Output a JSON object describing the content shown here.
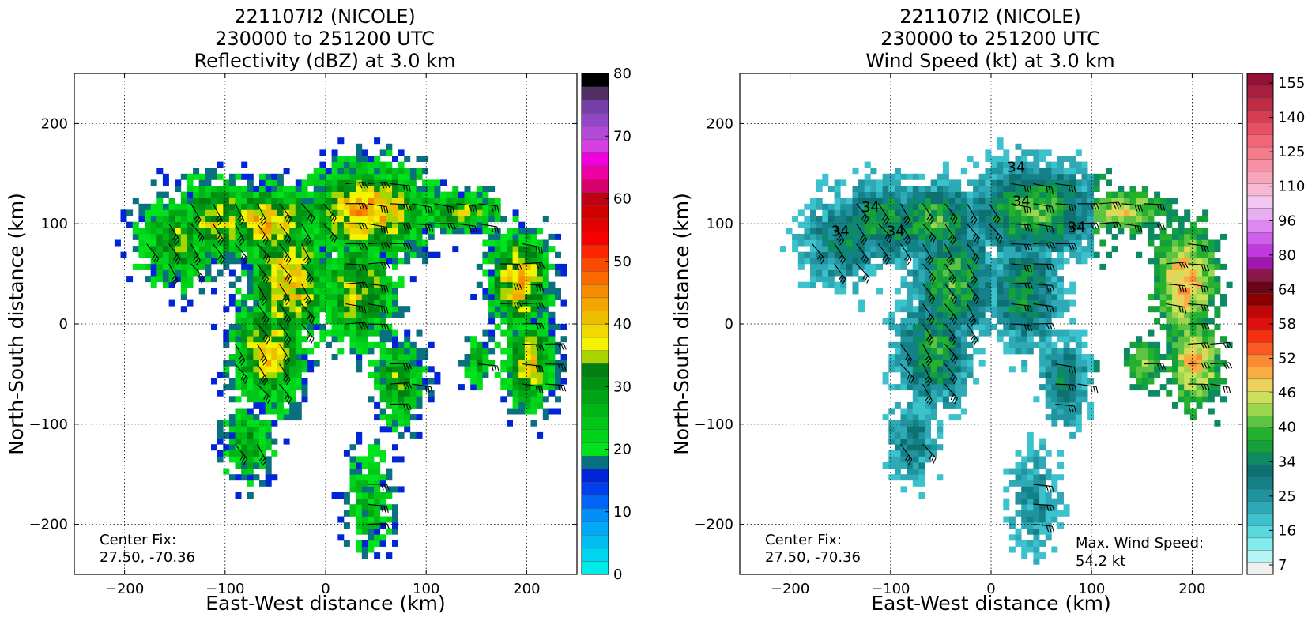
{
  "panels": [
    {
      "title": [
        "221107I2 (NICOLE)",
        "230000 to 251200 UTC",
        "Reflectivity (dBZ) at 3.0 km"
      ],
      "annotation": [
        "Center Fix:",
        "27.50, -70.36"
      ]
    },
    {
      "title": [
        "221107I2 (NICOLE)",
        "230000 to 251200 UTC",
        "Wind Speed (kt) at 3.0 km"
      ],
      "annotation": [
        "Center Fix:",
        "27.50, -70.36"
      ],
      "annotation_right": [
        "Max. Wind Speed:",
        "54.2 kt"
      ]
    }
  ],
  "chart_data": [
    {
      "type": "heatmap",
      "xlabel": "East-West distance (km)",
      "ylabel": "North-South distance (km)",
      "xlim": [
        -250,
        250
      ],
      "ylim": [
        -250,
        250
      ],
      "xticks": [
        -200,
        -100,
        0,
        100,
        200
      ],
      "yticks": [
        -200,
        -100,
        0,
        100,
        200
      ],
      "xtick_labels": [
        "−200",
        "−100",
        "0",
        "100",
        "200"
      ],
      "ytick_labels": [
        "−200",
        "−100",
        "0",
        "100",
        "200"
      ],
      "grid": true,
      "colorbar": {
        "range": [
          0,
          80
        ],
        "ticks": [
          0,
          10,
          20,
          30,
          40,
          50,
          60,
          70,
          80
        ],
        "colors": [
          "#00eaea",
          "#00d4ee",
          "#00bef2",
          "#00a8f6",
          "#0090f8",
          "#0064f4",
          "#0040ec",
          "#0024d8",
          "#08707e",
          "#00e21c",
          "#00d41a",
          "#00c618",
          "#00b616",
          "#00a414",
          "#009212",
          "#008010",
          "#a8d400",
          "#f4f400",
          "#f0d800",
          "#ecbe00",
          "#f4a600",
          "#f88c00",
          "#fa6a00",
          "#fa4a00",
          "#fa2600",
          "#f40000",
          "#e20000",
          "#d00000",
          "#c00016",
          "#d8006a",
          "#ee00a4",
          "#f000dc",
          "#d640e2",
          "#b24ad8",
          "#9248c4",
          "#7440a8",
          "#503060",
          "#000000"
        ]
      }
    },
    {
      "type": "heatmap",
      "xlabel": "East-West distance (km)",
      "ylabel": "North-South distance (km)",
      "xlim": [
        -250,
        250
      ],
      "ylim": [
        -250,
        250
      ],
      "xticks": [
        -200,
        -100,
        0,
        100,
        200
      ],
      "yticks": [
        -200,
        -100,
        0,
        100,
        200
      ],
      "xtick_labels": [
        "−200",
        "−100",
        "0",
        "100",
        "200"
      ],
      "ytick_labels": [
        "−200",
        "−100",
        "0",
        "100",
        "200"
      ],
      "grid": true,
      "contour_labels": [
        "34",
        "34",
        "34",
        "34",
        "34",
        "34"
      ],
      "colorbar": {
        "tick_labels": [
          "7",
          "16",
          "25",
          "34",
          "40",
          "46",
          "52",
          "58",
          "64",
          "80",
          "96",
          "110",
          "125",
          "140",
          "155"
        ],
        "colors": [
          "#f0f0f0",
          "#b4f4f4",
          "#84ecec",
          "#5ad8de",
          "#3cc2cc",
          "#2eaab6",
          "#20949e",
          "#148088",
          "#0e7070",
          "#0c8a62",
          "#14a03a",
          "#24b22e",
          "#5cc442",
          "#9cd64e",
          "#cce05a",
          "#ecd25a",
          "#f8ae42",
          "#fa8a34",
          "#fa5a22",
          "#f43010",
          "#de1010",
          "#c00808",
          "#8a0000",
          "#6a0418",
          "#8a1848",
          "#a018b0",
          "#c038e0",
          "#d060ec",
          "#dc88f0",
          "#e8aef2",
          "#f2c8f0",
          "#f6b8d2",
          "#f8a4ba",
          "#f890a4",
          "#f67c8c",
          "#f26478",
          "#e84e64",
          "#d83c52",
          "#c02c44",
          "#a81e3e",
          "#941036"
        ]
      }
    }
  ]
}
